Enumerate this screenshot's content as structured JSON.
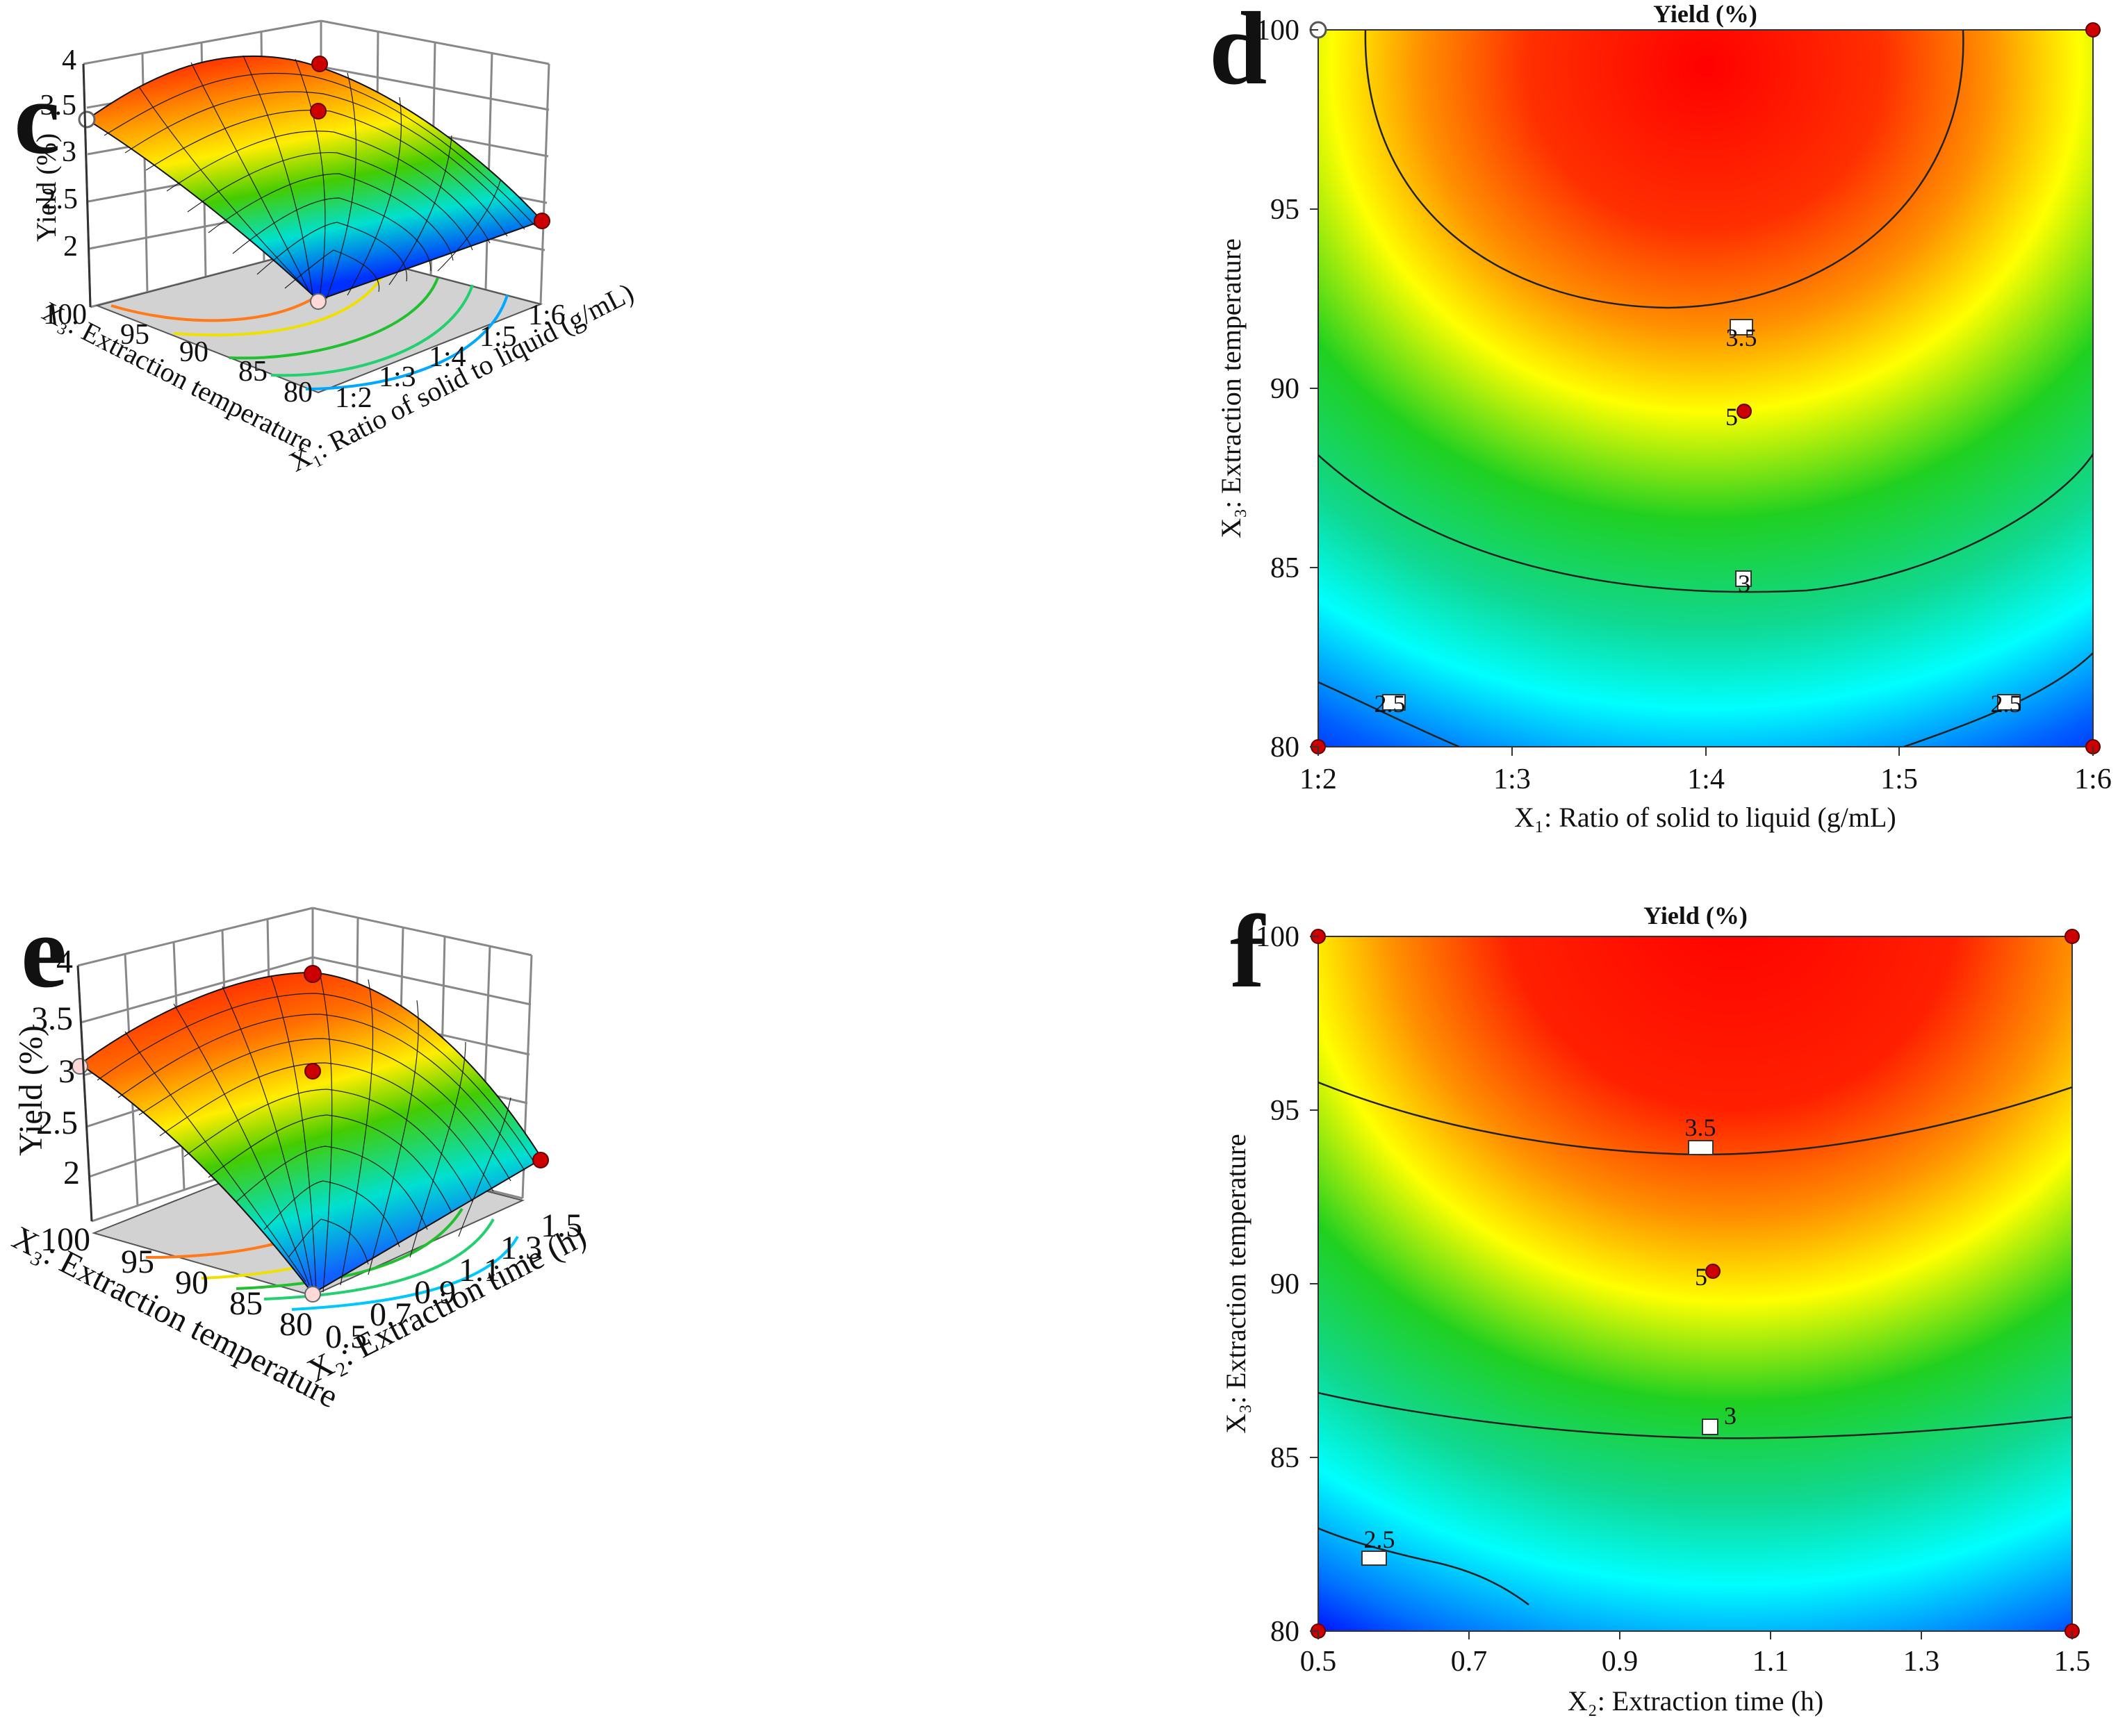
{
  "colors": {
    "high": "#ff0000",
    "mid": "#ffff00",
    "midlow": "#00c000",
    "low": "#00ffff",
    "lowest": "#0000ff",
    "floor": "#d2d2d2",
    "point": "#cc0000"
  },
  "panels": {
    "c": {
      "label": "c",
      "chart_data": {
        "type": "surface",
        "zlabel": "Yield (%)",
        "xlabel": "X₁: Ratio of solid to liquid (g/mL)",
        "ylabel": "X₃: Extraction temperature",
        "x_ticks": [
          "1:2",
          "1:3",
          "1:4",
          "1:5",
          "1:6"
        ],
        "y_ticks": [
          "80",
          "85",
          "90",
          "95",
          "100"
        ],
        "z_ticks": [
          "2",
          "2.5",
          "3",
          "3.5",
          "4"
        ],
        "zlim": [
          1.5,
          4
        ]
      }
    },
    "d": {
      "label": "d",
      "chart_data": {
        "type": "contour",
        "title": "Yield (%)",
        "xlabel": "X₁: Ratio of solid to liquid (g/mL)",
        "ylabel": "X₃: Extraction temperature",
        "x_ticks": [
          "1:2",
          "1:3",
          "1:4",
          "1:5",
          "1:6"
        ],
        "y_ticks": [
          "80",
          "85",
          "90",
          "95",
          "100"
        ],
        "contour_levels": [
          2.5,
          3,
          3.5
        ],
        "contour_labels": [
          "2.5",
          "2.5",
          "3",
          "3.5"
        ],
        "center_point_label": "5"
      }
    },
    "e": {
      "label": "e",
      "chart_data": {
        "type": "surface",
        "zlabel": "Yield (%)",
        "xlabel": "X₂: Extraction time (h)",
        "ylabel": "X₃: Extraction temperature",
        "x_ticks": [
          "0.5",
          "0.7",
          "0.9",
          "1.1",
          "1.3",
          "1.5"
        ],
        "y_ticks": [
          "80",
          "85",
          "90",
          "95",
          "100"
        ],
        "z_ticks": [
          "2",
          "2.5",
          "3",
          "3.5",
          "4"
        ],
        "zlim": [
          1.5,
          4
        ]
      }
    },
    "f": {
      "label": "f",
      "chart_data": {
        "type": "contour",
        "title": "Yield (%)",
        "xlabel": "X₂: Extraction time (h)",
        "ylabel": "X₃: Extraction temperature",
        "x_ticks": [
          "0.5",
          "0.7",
          "0.9",
          "1.1",
          "1.3",
          "1.5"
        ],
        "y_ticks": [
          "80",
          "85",
          "90",
          "95",
          "100"
        ],
        "contour_levels": [
          2.5,
          3,
          3.5
        ],
        "contour_labels": [
          "2.5",
          "3",
          "3.5"
        ],
        "center_point_label": "5"
      }
    }
  }
}
